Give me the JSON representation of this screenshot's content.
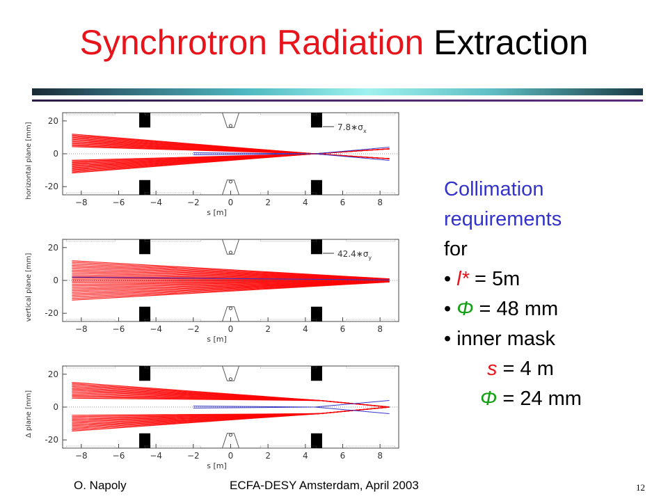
{
  "title": {
    "red_part": "Synchrotron Radiation",
    "black_part": "Extraction"
  },
  "colors": {
    "title_red": "#e8141b",
    "text_blue": "#3333cc",
    "symbol_green": "#14a014",
    "beam_red": "#ff0000",
    "beam_blue": "#3333cc"
  },
  "side_text": {
    "line1": "Collimation",
    "line2": "requirements",
    "line3": "for",
    "bullet1_symbol": "l*",
    "bullet1_value": " = 5m",
    "bullet2_symbol": "Φ",
    "bullet2_value": " = 48 mm",
    "bullet3_text": "inner mask",
    "sub1_symbol": "s",
    "sub1_value": " = 4 m",
    "sub2_symbol": "Φ",
    "sub2_value": " = 24 mm"
  },
  "footer": {
    "author": "O. Napoly",
    "event": "ECFA-DESY Amsterdam, April 2003",
    "page": "12"
  },
  "chart_data": [
    {
      "type": "line",
      "ylabel": "horizontal plane [mm]",
      "xlabel": "s [m]",
      "legend": "7.8∗σ",
      "legend_sub": "x",
      "xlim": [
        -9,
        9
      ],
      "ylim": [
        -25,
        25
      ],
      "xticks": [
        "-8",
        "-6",
        "-4",
        "-2",
        "0",
        "2",
        "4",
        "6",
        "8"
      ],
      "yticks": [
        "20",
        "0",
        "-20"
      ],
      "grid": false
    },
    {
      "type": "line",
      "ylabel": "vertical plane [mm]",
      "xlabel": "s [m]",
      "legend": "42.4∗σ",
      "legend_sub": "y",
      "xlim": [
        -9,
        9
      ],
      "ylim": [
        -25,
        25
      ],
      "xticks": [
        "-8",
        "-6",
        "-4",
        "-2",
        "0",
        "2",
        "4",
        "6",
        "8"
      ],
      "yticks": [
        "20",
        "0",
        "-20"
      ],
      "grid": false
    },
    {
      "type": "line",
      "ylabel": "Δ plane [mm]",
      "xlabel": "s [m]",
      "legend": "",
      "legend_sub": "",
      "xlim": [
        -9,
        9
      ],
      "ylim": [
        -25,
        25
      ],
      "xticks": [
        "-8",
        "-6",
        "-4",
        "-2",
        "0",
        "2",
        "4",
        "6",
        "8"
      ],
      "yticks": [
        "20",
        "0",
        "-20"
      ],
      "grid": false
    }
  ]
}
